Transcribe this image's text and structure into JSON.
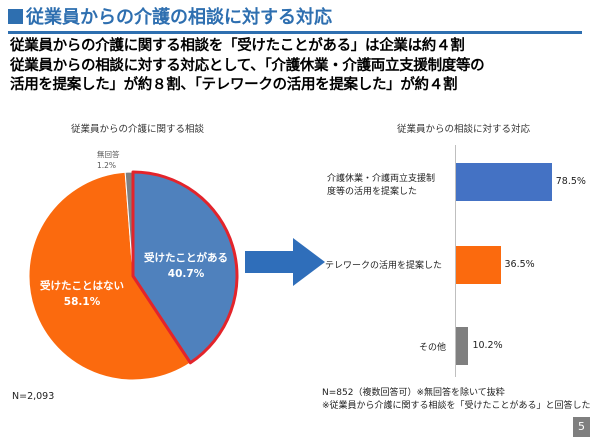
{
  "slide": {
    "title": "従業員からの介護の相談に対する対応",
    "summary_lines": [
      "従業員からの介護に関する相談を「受けたことがある」は企業は約４割",
      "従業員からの相談に対する対応として、「介護休業・介護両立支援制度等の",
      "活用を提案した」が約８割、「テレワークの活用を提案した」が約４割"
    ],
    "page_number": "5"
  },
  "chart_data": [
    {
      "type": "pie",
      "title": "従業員からの介護に関する相談",
      "slices": [
        {
          "label": "受けたことがある",
          "value": 40.7,
          "value_label": "40.7%",
          "color": "#4f81bd",
          "highlighted": true
        },
        {
          "label": "受けたことはない",
          "value": 58.1,
          "value_label": "58.1%",
          "color": "#fb6a0e"
        },
        {
          "label": "無回答",
          "value": 1.2,
          "value_label": "1.2%",
          "color": "#7f7f7f"
        }
      ],
      "highlight_color": "#e3242b",
      "n_note": "N=2,093"
    },
    {
      "type": "bar",
      "orientation": "horizontal",
      "title": "従業員からの相談に対する対応",
      "categories": [
        [
          "介護休業・介護両立支援制",
          "度等の活用を提案した"
        ],
        [
          "テレワークの活用を提案した"
        ],
        [
          "その他"
        ]
      ],
      "values": [
        78.5,
        36.5,
        10.2
      ],
      "value_labels": [
        "78.5%",
        "36.5%",
        "10.2%"
      ],
      "colors": [
        "#4472c4",
        "#fb6a0e",
        "#7f7f7f"
      ],
      "xlim": [
        0,
        100
      ],
      "footnote": [
        "N=852（複数回答可）※無回答を除いて抜粋",
        "※従業員から介護に関する相談を「受けたことがある」と回答した企業"
      ]
    }
  ],
  "colors": {
    "title_blue": "#2e6fb0",
    "arrow_blue": "#2f6eba"
  }
}
